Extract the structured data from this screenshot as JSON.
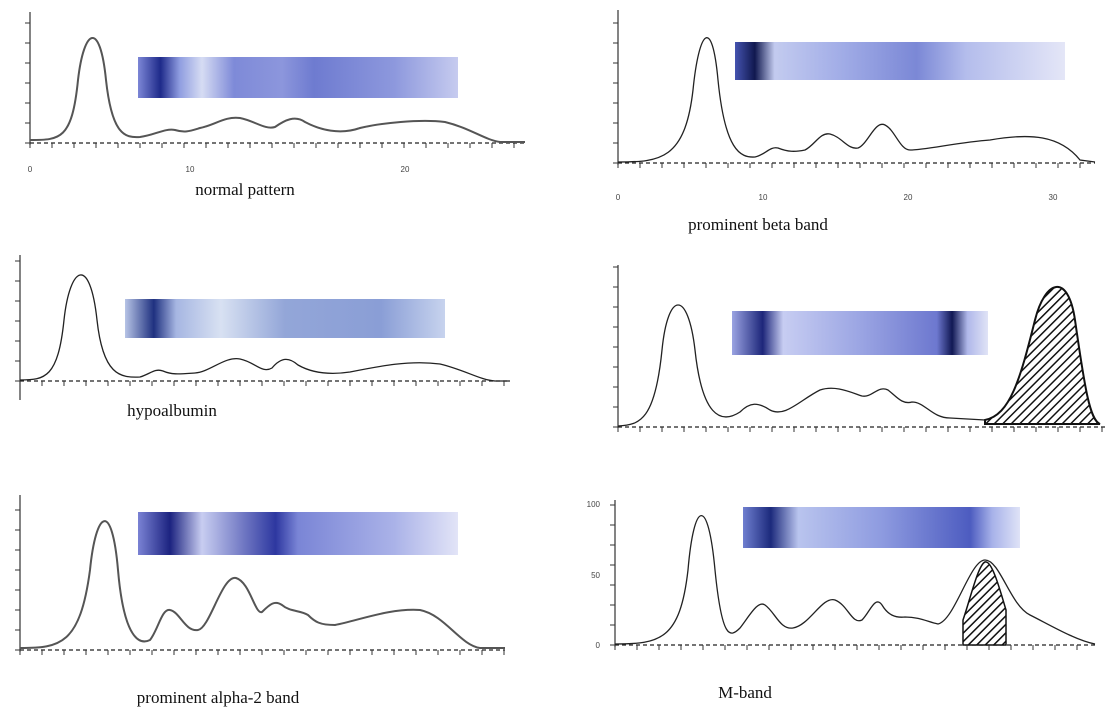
{
  "panels": [
    {
      "caption": "normal pattern",
      "x_ticks": [
        "0",
        "10",
        "20"
      ]
    },
    {
      "caption": "prominent beta band",
      "x_ticks": [
        "0",
        "10",
        "20",
        "30"
      ]
    },
    {
      "caption": "hypoalbumin"
    },
    {
      "caption": "prominent alpha-2 band"
    },
    {
      "caption": "M-band",
      "y_ticks": [
        "100",
        "50",
        "0"
      ]
    }
  ]
}
